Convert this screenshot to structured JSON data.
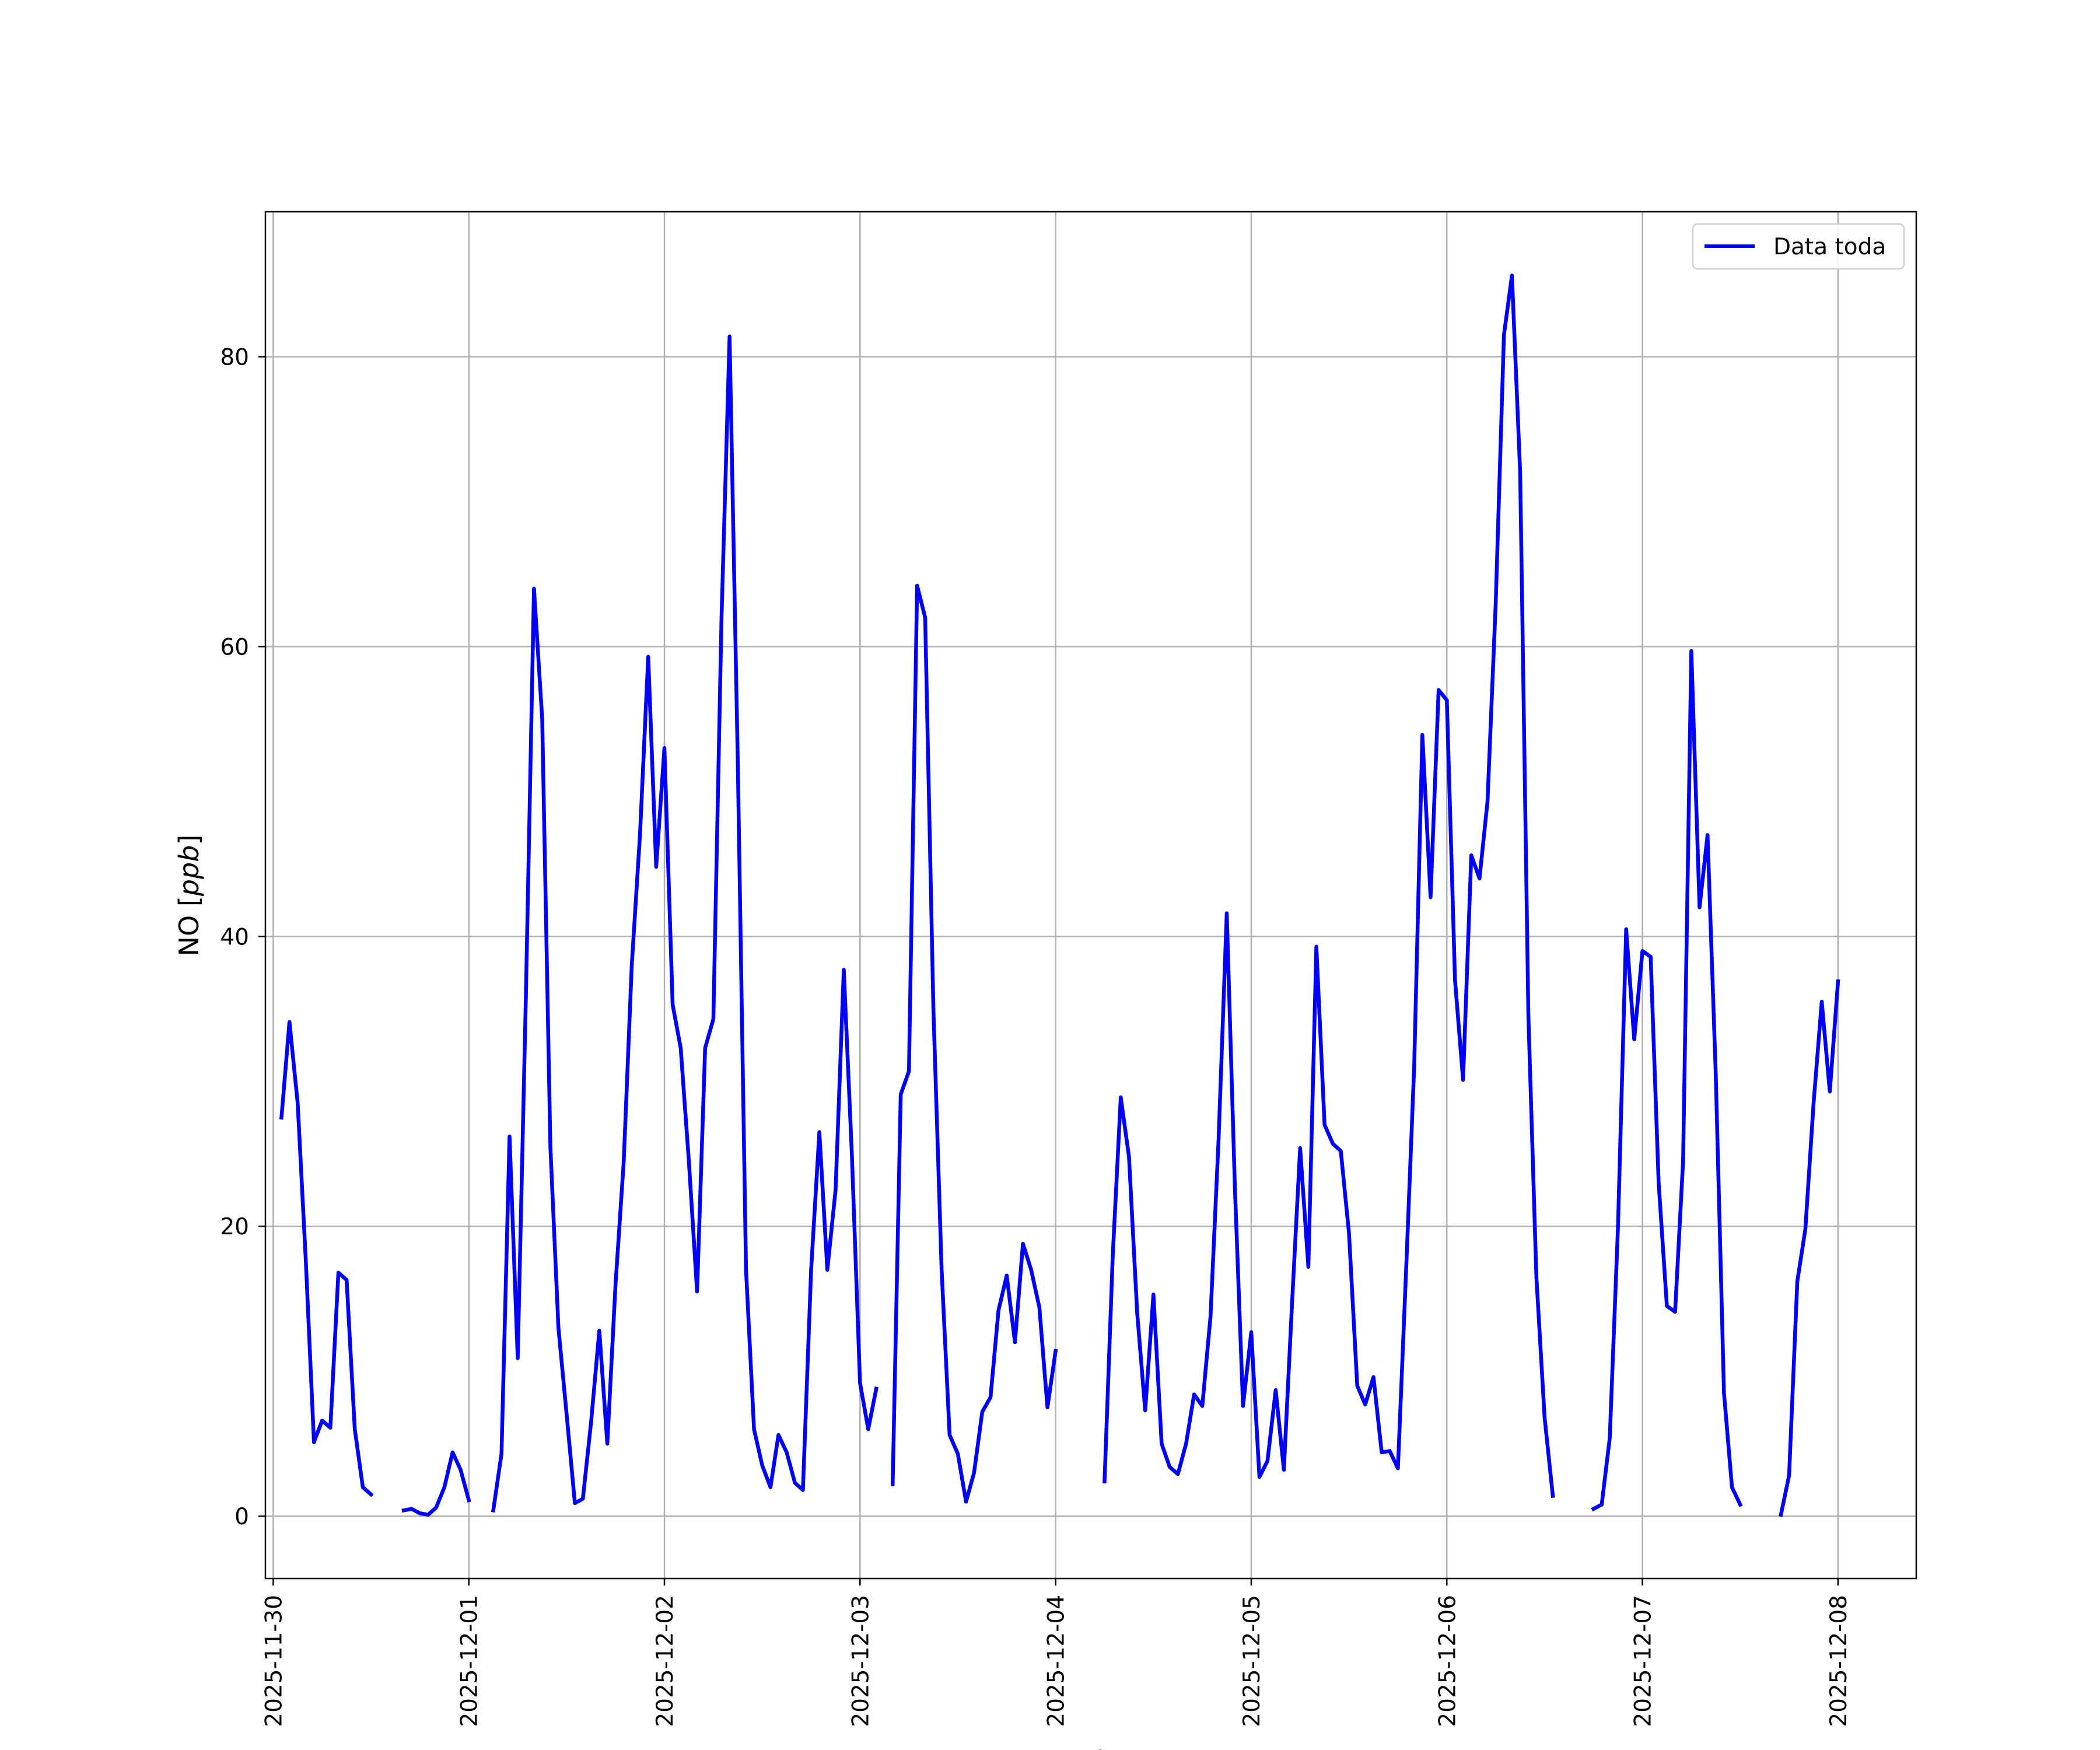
{
  "chart_data": {
    "type": "line",
    "title": "",
    "xlabel": "Fecha",
    "ylabel_main": "NO [",
    "ylabel_unit": "ppb",
    "ylabel_close": "]",
    "xlim": [
      -0.04,
      8.4
    ],
    "ylim": [
      -4.3,
      90
    ],
    "x_ticks": [
      {
        "value": 0,
        "label": "2025-11-30"
      },
      {
        "value": 1,
        "label": "2025-12-01"
      },
      {
        "value": 2,
        "label": "2025-12-02"
      },
      {
        "value": 3,
        "label": "2025-12-03"
      },
      {
        "value": 4,
        "label": "2025-12-04"
      },
      {
        "value": 5,
        "label": "2025-12-05"
      },
      {
        "value": 6,
        "label": "2025-12-06"
      },
      {
        "value": 7,
        "label": "2025-12-07"
      },
      {
        "value": 8,
        "label": "2025-12-08"
      }
    ],
    "y_ticks": [
      {
        "value": 0,
        "label": "0"
      },
      {
        "value": 20,
        "label": "20"
      },
      {
        "value": 40,
        "label": "40"
      },
      {
        "value": 60,
        "label": "60"
      },
      {
        "value": 80,
        "label": "80"
      }
    ],
    "grid": true,
    "legend_position": "top-right",
    "series": [
      {
        "name": "Data toda",
        "color": "#0000ff",
        "segments": [
          [
            [
              0.042,
              27.5
            ],
            [
              0.083,
              34.1
            ],
            [
              0.125,
              28.5
            ],
            [
              0.167,
              17.5
            ],
            [
              0.208,
              5.1
            ],
            [
              0.25,
              6.6
            ],
            [
              0.292,
              6.1
            ],
            [
              0.333,
              16.8
            ],
            [
              0.375,
              16.3
            ],
            [
              0.417,
              6.0
            ],
            [
              0.458,
              2.0
            ],
            [
              0.5,
              1.5
            ]
          ],
          [
            [
              0.667,
              0.4
            ],
            [
              0.708,
              0.5
            ],
            [
              0.75,
              0.2
            ],
            [
              0.792,
              0.1
            ],
            [
              0.833,
              0.6
            ],
            [
              0.875,
              2.0
            ],
            [
              0.917,
              4.4
            ],
            [
              0.958,
              3.2
            ],
            [
              1.0,
              1.1
            ]
          ],
          [
            [
              1.125,
              0.4
            ],
            [
              1.167,
              4.3
            ],
            [
              1.208,
              26.2
            ],
            [
              1.25,
              10.9
            ],
            [
              1.292,
              36.0
            ],
            [
              1.333,
              64.0
            ],
            [
              1.375,
              55.0
            ],
            [
              1.417,
              25.5
            ],
            [
              1.458,
              13.0
            ],
            [
              1.5,
              7.0
            ],
            [
              1.542,
              0.9
            ],
            [
              1.583,
              1.2
            ],
            [
              1.625,
              6.5
            ],
            [
              1.667,
              12.8
            ],
            [
              1.708,
              5.0
            ],
            [
              1.75,
              16.0
            ],
            [
              1.792,
              24.5
            ],
            [
              1.833,
              38.0
            ],
            [
              1.875,
              47.0
            ],
            [
              1.917,
              59.3
            ],
            [
              1.958,
              44.8
            ],
            [
              2.0,
              53.0
            ],
            [
              2.042,
              35.3
            ],
            [
              2.083,
              32.3
            ],
            [
              2.125,
              24.5
            ],
            [
              2.167,
              15.5
            ],
            [
              2.208,
              32.3
            ],
            [
              2.25,
              34.3
            ],
            [
              2.292,
              62.0
            ],
            [
              2.333,
              81.4
            ],
            [
              2.375,
              52.0
            ],
            [
              2.417,
              17.0
            ],
            [
              2.458,
              6.0
            ],
            [
              2.5,
              3.5
            ],
            [
              2.542,
              2.0
            ],
            [
              2.583,
              5.6
            ],
            [
              2.625,
              4.4
            ],
            [
              2.667,
              2.3
            ],
            [
              2.708,
              1.8
            ],
            [
              2.75,
              17.0
            ],
            [
              2.792,
              26.5
            ],
            [
              2.833,
              17.0
            ],
            [
              2.875,
              22.5
            ],
            [
              2.917,
              37.7
            ],
            [
              2.958,
              25.0
            ],
            [
              3.0,
              9.2
            ],
            [
              3.042,
              6.0
            ],
            [
              3.083,
              8.8
            ]
          ],
          [
            [
              3.167,
              2.2
            ],
            [
              3.208,
              29.1
            ],
            [
              3.25,
              30.7
            ],
            [
              3.292,
              64.2
            ],
            [
              3.333,
              62.0
            ],
            [
              3.375,
              35.0
            ],
            [
              3.417,
              17.0
            ],
            [
              3.458,
              5.6
            ],
            [
              3.5,
              4.3
            ],
            [
              3.542,
              1.0
            ],
            [
              3.583,
              3.0
            ],
            [
              3.625,
              7.2
            ],
            [
              3.667,
              8.2
            ],
            [
              3.708,
              14.2
            ],
            [
              3.75,
              16.6
            ],
            [
              3.792,
              12.0
            ],
            [
              3.833,
              18.8
            ],
            [
              3.875,
              17.0
            ],
            [
              3.917,
              14.4
            ],
            [
              3.958,
              7.5
            ],
            [
              4.0,
              11.4
            ]
          ],
          [
            [
              4.25,
              2.4
            ],
            [
              4.292,
              18.0
            ],
            [
              4.333,
              28.9
            ],
            [
              4.375,
              24.8
            ],
            [
              4.417,
              14.0
            ],
            [
              4.458,
              7.3
            ],
            [
              4.5,
              15.3
            ],
            [
              4.542,
              5.0
            ],
            [
              4.583,
              3.4
            ],
            [
              4.625,
              2.9
            ],
            [
              4.667,
              5.0
            ],
            [
              4.708,
              8.4
            ],
            [
              4.75,
              7.6
            ],
            [
              4.792,
              13.8
            ],
            [
              4.833,
              26.0
            ],
            [
              4.875,
              41.6
            ],
            [
              4.917,
              22.5
            ],
            [
              4.958,
              7.6
            ],
            [
              5.0,
              12.7
            ],
            [
              5.042,
              2.7
            ],
            [
              5.083,
              3.8
            ],
            [
              5.125,
              8.7
            ],
            [
              5.167,
              3.2
            ],
            [
              5.208,
              14.5
            ],
            [
              5.25,
              25.4
            ],
            [
              5.292,
              17.2
            ],
            [
              5.333,
              39.3
            ],
            [
              5.375,
              27.0
            ],
            [
              5.417,
              25.7
            ],
            [
              5.458,
              25.2
            ],
            [
              5.5,
              19.5
            ],
            [
              5.542,
              9.0
            ],
            [
              5.583,
              7.7
            ],
            [
              5.625,
              9.6
            ],
            [
              5.667,
              4.4
            ],
            [
              5.708,
              4.5
            ],
            [
              5.75,
              3.3
            ],
            [
              5.792,
              17.0
            ],
            [
              5.833,
              31.0
            ],
            [
              5.875,
              53.9
            ],
            [
              5.917,
              42.7
            ],
            [
              5.958,
              57.0
            ],
            [
              6.0,
              56.3
            ],
            [
              6.042,
              37.0
            ],
            [
              6.083,
              30.1
            ],
            [
              6.125,
              45.6
            ],
            [
              6.167,
              44.0
            ],
            [
              6.208,
              49.3
            ],
            [
              6.25,
              63.0
            ],
            [
              6.292,
              81.5
            ],
            [
              6.333,
              85.6
            ],
            [
              6.375,
              72.0
            ],
            [
              6.417,
              34.5
            ],
            [
              6.458,
              16.5
            ],
            [
              6.5,
              6.8
            ],
            [
              6.542,
              1.4
            ]
          ],
          [
            [
              6.75,
              0.5
            ],
            [
              6.792,
              0.8
            ],
            [
              6.833,
              5.4
            ],
            [
              6.875,
              20.0
            ],
            [
              6.917,
              40.5
            ],
            [
              6.958,
              32.9
            ],
            [
              7.0,
              39.0
            ],
            [
              7.042,
              38.6
            ],
            [
              7.083,
              23.0
            ],
            [
              7.125,
              14.5
            ],
            [
              7.167,
              14.1
            ],
            [
              7.208,
              24.5
            ],
            [
              7.25,
              59.7
            ],
            [
              7.292,
              42.0
            ],
            [
              7.333,
              47.0
            ],
            [
              7.375,
              30.5
            ],
            [
              7.417,
              8.5
            ],
            [
              7.458,
              2.0
            ],
            [
              7.5,
              0.8
            ]
          ],
          [
            [
              7.708,
              0.1
            ],
            [
              7.75,
              2.8
            ],
            [
              7.792,
              16.2
            ],
            [
              7.833,
              19.8
            ],
            [
              7.875,
              28.5
            ],
            [
              7.917,
              35.5
            ],
            [
              7.958,
              29.3
            ],
            [
              8.0,
              36.9
            ]
          ]
        ]
      }
    ]
  }
}
